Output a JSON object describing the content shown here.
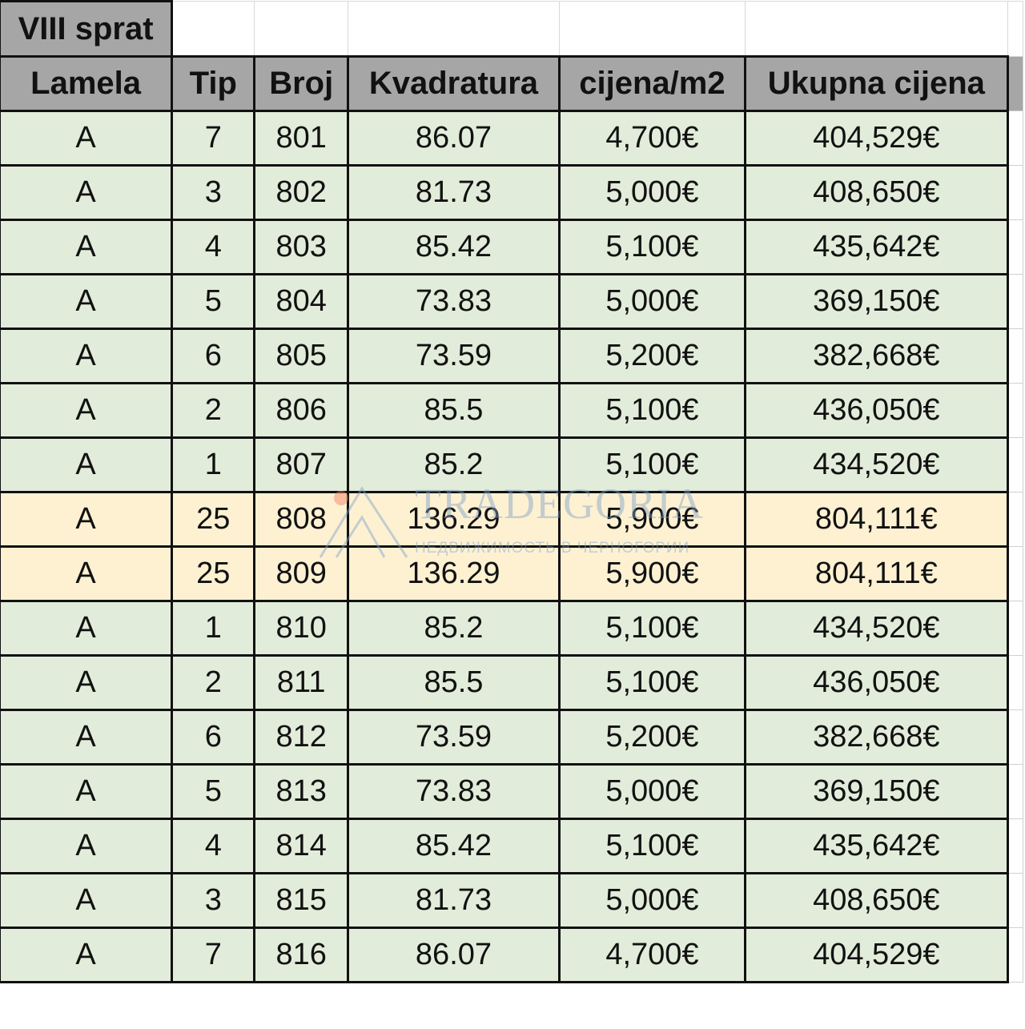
{
  "sheet_title": "VIII sprat",
  "columns": [
    "Lamela",
    "Tip",
    "Broj",
    "Kvadratura",
    "cijena/m2",
    "Ukupna cijena"
  ],
  "rows": [
    {
      "lamela": "A",
      "tip": "7",
      "broj": "801",
      "kvadratura": "86.07",
      "cijena_m2": "4,700€",
      "ukupna": "404,529€",
      "highlight": "green"
    },
    {
      "lamela": "A",
      "tip": "3",
      "broj": "802",
      "kvadratura": "81.73",
      "cijena_m2": "5,000€",
      "ukupna": "408,650€",
      "highlight": "green"
    },
    {
      "lamela": "A",
      "tip": "4",
      "broj": "803",
      "kvadratura": "85.42",
      "cijena_m2": "5,100€",
      "ukupna": "435,642€",
      "highlight": "green"
    },
    {
      "lamela": "A",
      "tip": "5",
      "broj": "804",
      "kvadratura": "73.83",
      "cijena_m2": "5,000€",
      "ukupna": "369,150€",
      "highlight": "green"
    },
    {
      "lamela": "A",
      "tip": "6",
      "broj": "805",
      "kvadratura": "73.59",
      "cijena_m2": "5,200€",
      "ukupna": "382,668€",
      "highlight": "green"
    },
    {
      "lamela": "A",
      "tip": "2",
      "broj": "806",
      "kvadratura": "85.5",
      "cijena_m2": "5,100€",
      "ukupna": "436,050€",
      "highlight": "green"
    },
    {
      "lamela": "A",
      "tip": "1",
      "broj": "807",
      "kvadratura": "85.2",
      "cijena_m2": "5,100€",
      "ukupna": "434,520€",
      "highlight": "green"
    },
    {
      "lamela": "A",
      "tip": "25",
      "broj": "808",
      "kvadratura": "136.29",
      "cijena_m2": "5,900€",
      "ukupna": "804,111€",
      "highlight": "yellow"
    },
    {
      "lamela": "A",
      "tip": "25",
      "broj": "809",
      "kvadratura": "136.29",
      "cijena_m2": "5,900€",
      "ukupna": "804,111€",
      "highlight": "yellow"
    },
    {
      "lamela": "A",
      "tip": "1",
      "broj": "810",
      "kvadratura": "85.2",
      "cijena_m2": "5,100€",
      "ukupna": "434,520€",
      "highlight": "green"
    },
    {
      "lamela": "A",
      "tip": "2",
      "broj": "811",
      "kvadratura": "85.5",
      "cijena_m2": "5,100€",
      "ukupna": "436,050€",
      "highlight": "green"
    },
    {
      "lamela": "A",
      "tip": "6",
      "broj": "812",
      "kvadratura": "73.59",
      "cijena_m2": "5,200€",
      "ukupna": "382,668€",
      "highlight": "green"
    },
    {
      "lamela": "A",
      "tip": "5",
      "broj": "813",
      "kvadratura": "73.83",
      "cijena_m2": "5,000€",
      "ukupna": "369,150€",
      "highlight": "green"
    },
    {
      "lamela": "A",
      "tip": "4",
      "broj": "814",
      "kvadratura": "85.42",
      "cijena_m2": "5,100€",
      "ukupna": "435,642€",
      "highlight": "green"
    },
    {
      "lamela": "A",
      "tip": "3",
      "broj": "815",
      "kvadratura": "81.73",
      "cijena_m2": "5,000€",
      "ukupna": "408,650€",
      "highlight": "green"
    },
    {
      "lamela": "A",
      "tip": "7",
      "broj": "816",
      "kvadratura": "86.07",
      "cijena_m2": "4,700€",
      "ukupna": "404,529€",
      "highlight": "green"
    }
  ],
  "watermark": {
    "title": "TRADEGORIA",
    "subtitle": "НЕДВИЖИМОСТЬ В ЧЕРНОГОРИИ"
  },
  "colors": {
    "header_bg": "#a6a6a6",
    "green_row": "#e2ecda",
    "yellow_row": "#fdf1d2",
    "watermark": "#7fa0c7",
    "watermark_dot": "#f07d5a"
  }
}
